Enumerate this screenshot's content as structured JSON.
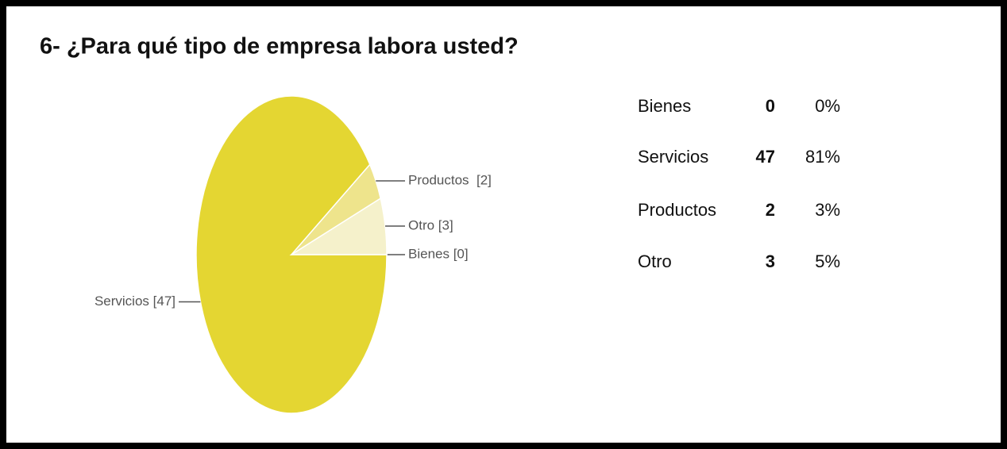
{
  "chart_data": {
    "type": "pie",
    "title": "6- ¿Para qué tipo de empresa labora usted?",
    "categories": [
      "Bienes",
      "Servicios",
      "Productos",
      "Otro"
    ],
    "values": [
      0,
      47,
      2,
      3
    ],
    "value_labels": [
      "Bienes [0]",
      "Servicios [47]",
      "Productos  [2]",
      "Otro [3]"
    ],
    "colors": [
      "#faf7e0",
      "#e4d632",
      "#eee48c",
      "#f5f1cb"
    ]
  },
  "table": {
    "rows": [
      [
        "Bienes",
        0,
        "0%"
      ],
      [
        "Servicios",
        47,
        "81%"
      ],
      [
        "Productos",
        2,
        "3%"
      ],
      [
        "Otro",
        3,
        "5%"
      ]
    ]
  }
}
